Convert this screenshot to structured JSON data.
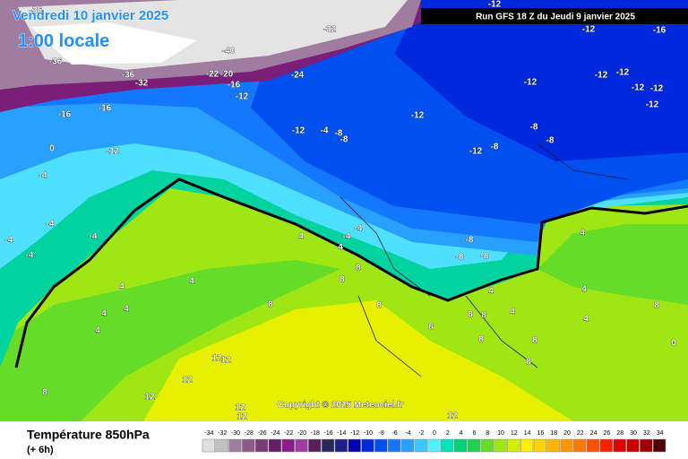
{
  "header": {
    "date": "Vendredi 10 janvier 2025",
    "time": "1:00 locale",
    "run": "Run GFS 18 Z du Jeudi 9 janvier 2025",
    "copyright": "Copyright © 2025 Meteociel.fr"
  },
  "footer": {
    "title": "Température 850hPa",
    "step": "(+ 6h)"
  },
  "map": {
    "contour_labels": [
      -36,
      -32,
      -36,
      -40,
      -36,
      -32,
      -22,
      -20,
      -16,
      -12,
      -24,
      -16,
      -16,
      -12,
      0,
      -4,
      -12,
      -4,
      -8,
      -8,
      -12,
      -12,
      -12,
      -16,
      -12,
      -12,
      -12,
      -12,
      -12,
      -12,
      -8,
      -8,
      -8,
      -12,
      -8,
      -8,
      -8,
      -4,
      -4,
      4,
      4,
      8,
      8,
      8,
      4,
      4,
      4,
      4,
      4,
      -4,
      -4,
      -4,
      -4,
      8,
      8,
      8,
      8,
      8,
      4,
      4,
      4,
      4,
      4,
      8,
      8,
      0,
      12,
      12,
      12,
      12,
      12,
      12,
      12,
      8,
      8
    ]
  },
  "legend": {
    "scale": [
      -34,
      -32,
      -30,
      -28,
      -26,
      -24,
      -22,
      -20,
      -18,
      -16,
      -14,
      -12,
      -10,
      -8,
      -6,
      -4,
      -2,
      0,
      2,
      4,
      6,
      8,
      10,
      12,
      14,
      16,
      18,
      20,
      22,
      24,
      26,
      28,
      30,
      32,
      34
    ],
    "colors": [
      "#e0e0e0",
      "#c0c0c0",
      "#a07ca0",
      "#8c5a8c",
      "#783c78",
      "#641e64",
      "#8c1e8c",
      "#a03ca0",
      "#5a1e5a",
      "#28285a",
      "#1e1e8c",
      "#0000b4",
      "#0028dc",
      "#0050f0",
      "#1478ff",
      "#28a0ff",
      "#3cc8ff",
      "#50f0ff",
      "#00e6b4",
      "#00d278",
      "#1ed250",
      "#64dc28",
      "#a0e614",
      "#d2f000",
      "#fff000",
      "#ffd200",
      "#ffb400",
      "#ff9600",
      "#ff7800",
      "#ff5000",
      "#ff1e00",
      "#e60000",
      "#c80000",
      "#a00000",
      "#500000"
    ]
  }
}
